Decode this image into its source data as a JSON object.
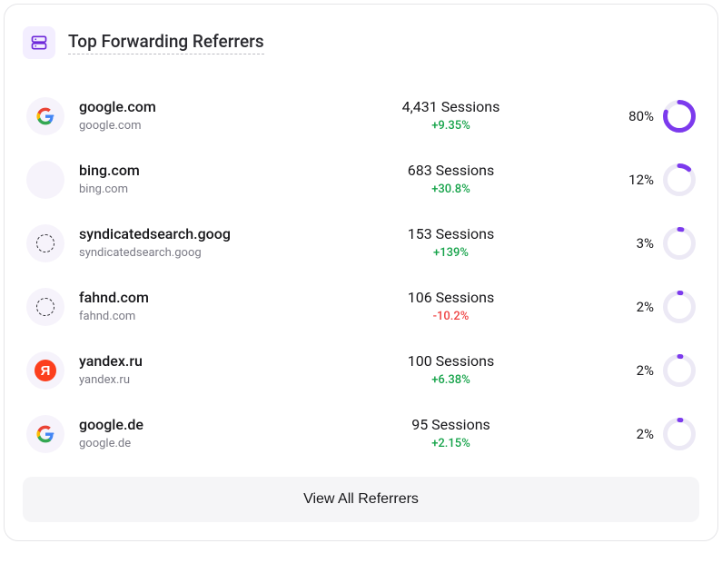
{
  "header": {
    "title": "Top Forwarding Referrers",
    "icon_color": "#6d28d9",
    "icon_bg": "#f3eeff"
  },
  "colors": {
    "donut_track": "#ece9f5",
    "donut_fill": "#7c3aed",
    "positive": "#16a34a",
    "negative": "#ef4444",
    "text_primary": "#18181b",
    "text_secondary": "#7a7a85",
    "card_border": "#e5e5e8",
    "button_bg": "#f5f5f7"
  },
  "referrers": [
    {
      "name": "google.com",
      "subtitle": "google.com",
      "sessions": "4,431 Sessions",
      "change": "+9.35%",
      "change_direction": "pos",
      "percent_label": "80%",
      "percent_value": 80,
      "logo_type": "google"
    },
    {
      "name": "bing.com",
      "subtitle": "bing.com",
      "sessions": "683 Sessions",
      "change": "+30.8%",
      "change_direction": "pos",
      "percent_label": "12%",
      "percent_value": 12,
      "logo_type": "blank"
    },
    {
      "name": "syndicatedsearch.goog",
      "subtitle": "syndicatedsearch.goog",
      "sessions": "153 Sessions",
      "change": "+139%",
      "change_direction": "pos",
      "percent_label": "3%",
      "percent_value": 3,
      "logo_type": "dashed"
    },
    {
      "name": "fahnd.com",
      "subtitle": "fahnd.com",
      "sessions": "106 Sessions",
      "change": "-10.2%",
      "change_direction": "neg",
      "percent_label": "2%",
      "percent_value": 2,
      "logo_type": "dashed"
    },
    {
      "name": "yandex.ru",
      "subtitle": "yandex.ru",
      "sessions": "100 Sessions",
      "change": "+6.38%",
      "change_direction": "pos",
      "percent_label": "2%",
      "percent_value": 2,
      "logo_type": "yandex"
    },
    {
      "name": "google.de",
      "subtitle": "google.de",
      "sessions": "95 Sessions",
      "change": "+2.15%",
      "change_direction": "pos",
      "percent_label": "2%",
      "percent_value": 2,
      "logo_type": "google"
    }
  ],
  "button": {
    "label": "View All Referrers"
  },
  "donut_style": {
    "size": 36,
    "stroke_width": 5,
    "track_color": "#ece9f5",
    "fill_color": "#7c3aed"
  }
}
